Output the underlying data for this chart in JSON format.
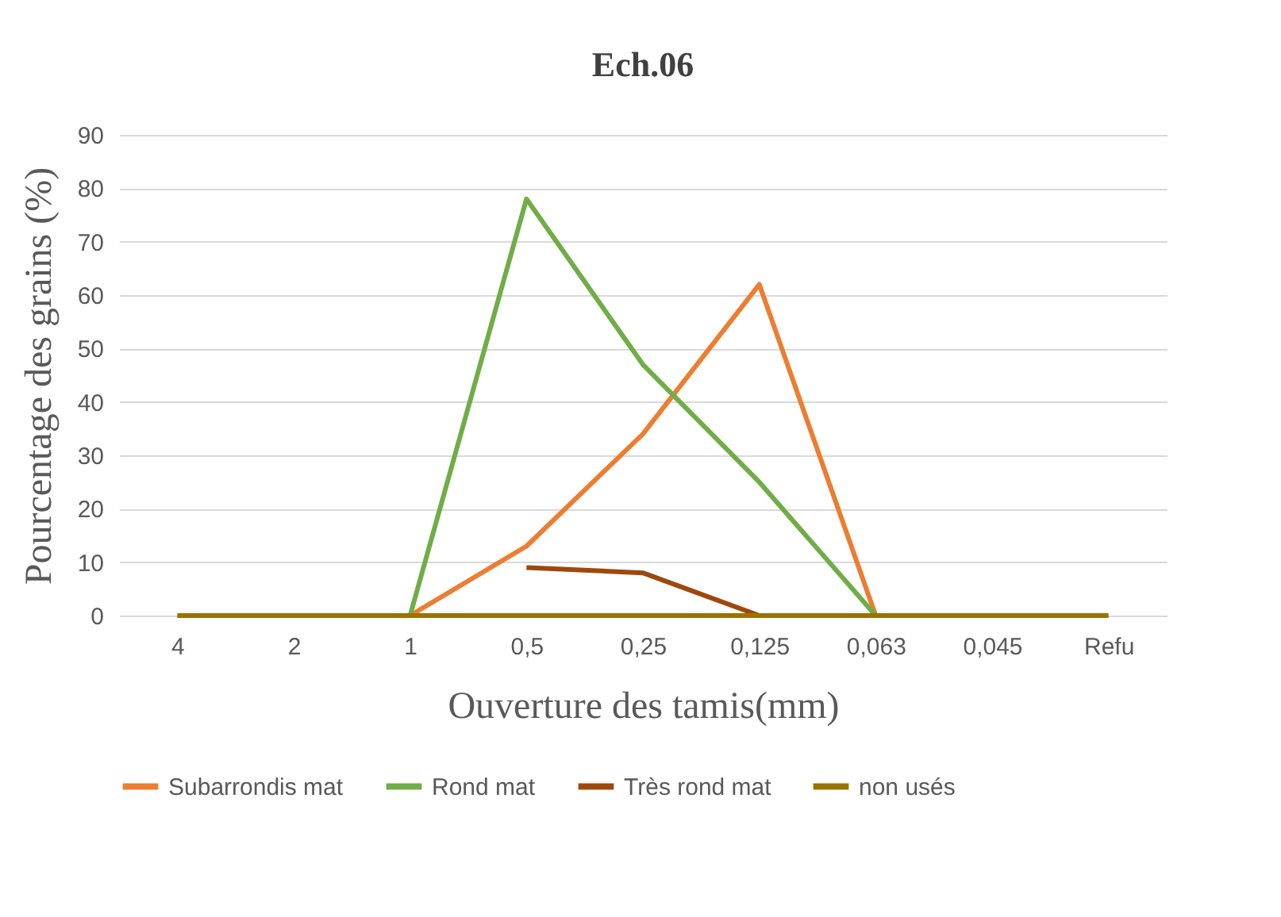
{
  "chart_data": {
    "type": "line",
    "title": "Ech.06",
    "xlabel": "Ouverture des tamis(mm)",
    "ylabel": "Pourcentage des grains  (%)",
    "categories": [
      "4",
      "2",
      "1",
      "0,5",
      "0,25",
      "0,125",
      "0,063",
      "0,045",
      "Refu"
    ],
    "series": [
      {
        "name": "Subarrondis mat",
        "color": "#ed7d31",
        "values": [
          null,
          null,
          0,
          13,
          34,
          62,
          0,
          null,
          null
        ]
      },
      {
        "name": "Rond mat",
        "color": "#70ad47",
        "values": [
          null,
          null,
          0,
          78,
          47,
          25,
          0,
          null,
          null
        ]
      },
      {
        "name": "Très rond mat",
        "color": "#9e480e",
        "values": [
          null,
          null,
          null,
          9,
          8,
          0,
          null,
          null,
          null
        ]
      },
      {
        "name": "non usés",
        "color": "#997300",
        "values": [
          0,
          0,
          0,
          0,
          0,
          0,
          0,
          0,
          0
        ]
      }
    ],
    "ylim": [
      0,
      90
    ],
    "yticks": [
      0,
      10,
      20,
      30,
      40,
      50,
      60,
      70,
      80,
      90
    ],
    "grid": "y",
    "legend": "bottom",
    "marker": "none",
    "line_style": "solid"
  }
}
